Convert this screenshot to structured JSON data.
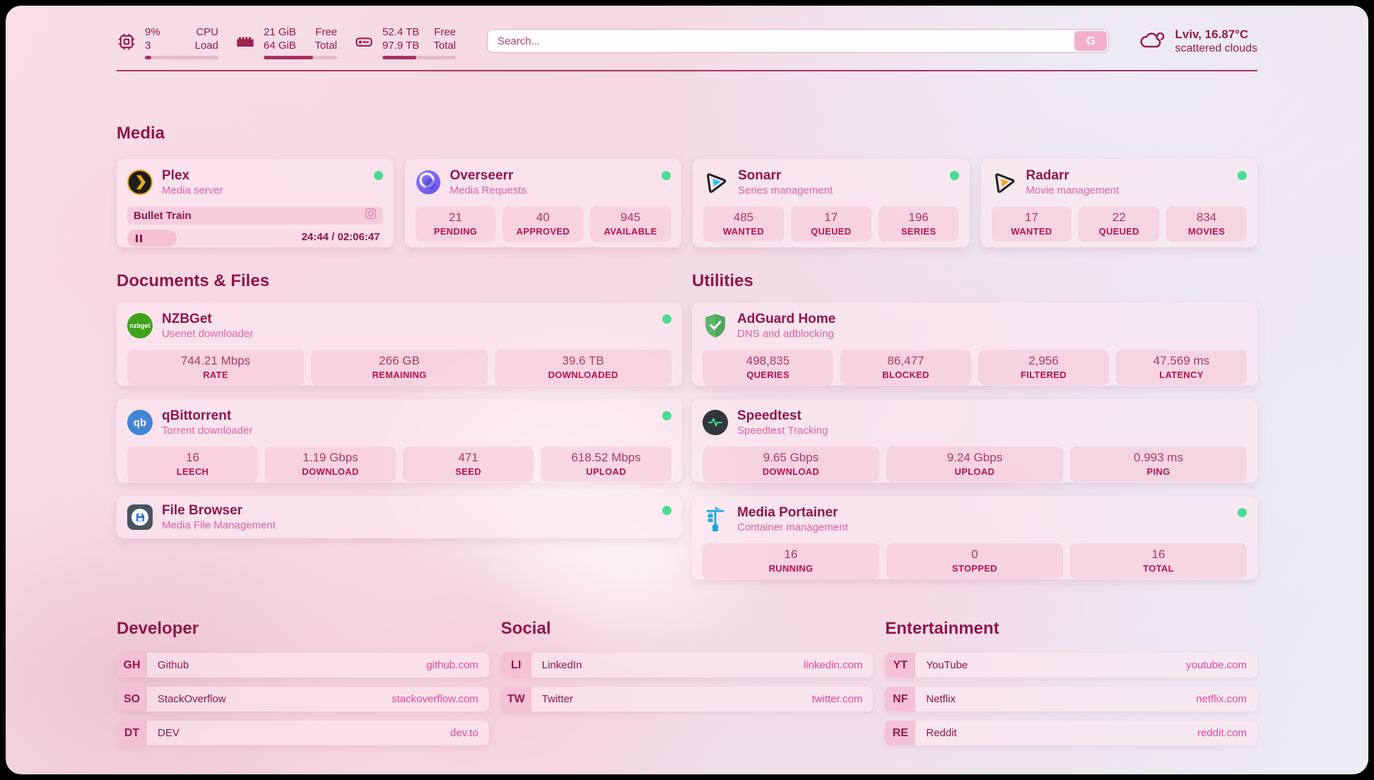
{
  "colors": {
    "accent": "#96194b",
    "status_green": "#4bdb91",
    "subtitle_pink": "#e0639e"
  },
  "header": {
    "cpu": {
      "top_value": "9%",
      "bottom_value": "3",
      "top_label": "CPU",
      "bottom_label": "Load",
      "percent": 9
    },
    "ram": {
      "top_value": "21 GiB",
      "bottom_value": "64 GiB",
      "top_label": "Free",
      "bottom_label": "Total",
      "percent": 67
    },
    "disk": {
      "top_value": "52.4 TB",
      "bottom_value": "97.9 TB",
      "top_label": "Free",
      "bottom_label": "Total",
      "percent": 46
    },
    "search": {
      "placeholder": "Search...",
      "button_label": "G"
    },
    "weather": {
      "summary": "Lviv, 16.87°C",
      "condition": "scattered clouds"
    }
  },
  "media": {
    "title": "Media",
    "plex": {
      "title": "Plex",
      "subtitle": "Media server",
      "now_playing": "Bullet Train",
      "time": "24:44 / 02:06:47",
      "progress_percent": 19.5
    },
    "overseerr": {
      "title": "Overseerr",
      "subtitle": "Media Requests",
      "stats": [
        {
          "value": "21",
          "label": "PENDING"
        },
        {
          "value": "40",
          "label": "APPROVED"
        },
        {
          "value": "945",
          "label": "AVAILABLE"
        }
      ]
    },
    "sonarr": {
      "title": "Sonarr",
      "subtitle": "Series management",
      "stats": [
        {
          "value": "485",
          "label": "WANTED"
        },
        {
          "value": "17",
          "label": "QUEUED"
        },
        {
          "value": "196",
          "label": "SERIES"
        }
      ]
    },
    "radarr": {
      "title": "Radarr",
      "subtitle": "Movie management",
      "stats": [
        {
          "value": "17",
          "label": "WANTED"
        },
        {
          "value": "22",
          "label": "QUEUED"
        },
        {
          "value": "834",
          "label": "MOVIES"
        }
      ]
    }
  },
  "documents": {
    "title": "Documents & Files",
    "nzbget": {
      "title": "NZBGet",
      "subtitle": "Usenet downloader",
      "icon_text": "nzbget",
      "stats": [
        {
          "value": "744.21 Mbps",
          "label": "RATE"
        },
        {
          "value": "266 GB",
          "label": "REMAINING"
        },
        {
          "value": "39.6 TB",
          "label": "DOWNLOADED"
        }
      ]
    },
    "qbittorrent": {
      "title": "qBittorrent",
      "subtitle": "Torrent downloader",
      "icon_text": "qb",
      "stats": [
        {
          "value": "16",
          "label": "LEECH"
        },
        {
          "value": "1.19 Gbps",
          "label": "DOWNLOAD"
        },
        {
          "value": "471",
          "label": "SEED"
        },
        {
          "value": "618.52 Mbps",
          "label": "UPLOAD"
        }
      ]
    },
    "filebrowser": {
      "title": "File Browser",
      "subtitle": "Media File Management"
    }
  },
  "utilities": {
    "title": "Utilities",
    "adguard": {
      "title": "AdGuard Home",
      "subtitle": "DNS and adblocking",
      "stats": [
        {
          "value": "498,835",
          "label": "QUERIES"
        },
        {
          "value": "86,477",
          "label": "BLOCKED"
        },
        {
          "value": "2,956",
          "label": "FILTERED"
        },
        {
          "value": "47.569 ms",
          "label": "LATENCY"
        }
      ]
    },
    "speedtest": {
      "title": "Speedtest",
      "subtitle": "Speedtest Tracking",
      "stats": [
        {
          "value": "9.65 Gbps",
          "label": "DOWNLOAD"
        },
        {
          "value": "9.24 Gbps",
          "label": "UPLOAD"
        },
        {
          "value": "0.993 ms",
          "label": "PING"
        }
      ]
    },
    "portainer": {
      "title": "Media Portainer",
      "subtitle": "Container management",
      "stats": [
        {
          "value": "16",
          "label": "RUNNING"
        },
        {
          "value": "0",
          "label": "STOPPED"
        },
        {
          "value": "16",
          "label": "TOTAL"
        }
      ]
    }
  },
  "bookmarks": {
    "developer": {
      "title": "Developer",
      "items": [
        {
          "abbr": "GH",
          "name": "Github",
          "url": "github.com"
        },
        {
          "abbr": "SO",
          "name": "StackOverflow",
          "url": "stackoverflow.com"
        },
        {
          "abbr": "DT",
          "name": "DEV",
          "url": "dev.to"
        }
      ]
    },
    "social": {
      "title": "Social",
      "items": [
        {
          "abbr": "LI",
          "name": "LinkedIn",
          "url": "linkedin.com"
        },
        {
          "abbr": "TW",
          "name": "Twitter",
          "url": "twitter.com"
        }
      ]
    },
    "entertainment": {
      "title": "Entertainment",
      "items": [
        {
          "abbr": "YT",
          "name": "YouTube",
          "url": "youtube.com"
        },
        {
          "abbr": "NF",
          "name": "Netflix",
          "url": "netflix.com"
        },
        {
          "abbr": "RE",
          "name": "Reddit",
          "url": "reddit.com"
        }
      ]
    }
  }
}
